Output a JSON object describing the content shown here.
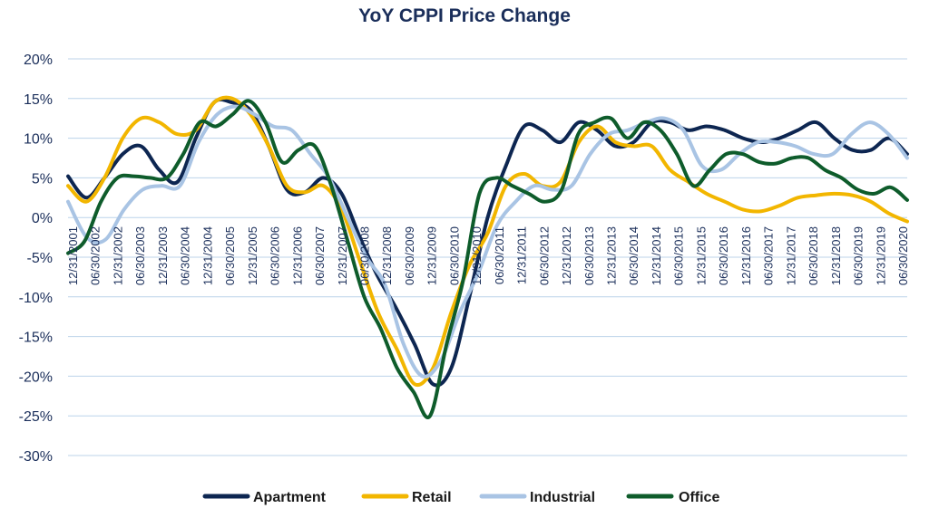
{
  "chart_data": {
    "type": "line",
    "title": "YoY CPPI Price Change",
    "xlabel": "",
    "ylabel": "",
    "ylim": [
      -30,
      20
    ],
    "y_ticks": [
      "20%",
      "15%",
      "10%",
      "5%",
      "0%",
      "-5%",
      "-10%",
      "-15%",
      "-20%",
      "-25%",
      "-30%"
    ],
    "y_tick_values": [
      20,
      15,
      10,
      5,
      0,
      -5,
      -10,
      -15,
      -20,
      -25,
      -30
    ],
    "x_tick_labels": [
      "12/31/2001",
      "06/30/2002",
      "12/31/2002",
      "06/30/2003",
      "12/31/2003",
      "06/30/2004",
      "12/31/2004",
      "06/30/2005",
      "12/31/2005",
      "06/30/2006",
      "12/31/2006",
      "06/30/2007",
      "12/31/2007",
      "06/30/2008",
      "12/31/2008",
      "06/30/2009",
      "12/31/2009",
      "06/30/2010",
      "12/31/2010",
      "06/30/2011",
      "12/31/2011",
      "06/30/2012",
      "12/31/2012",
      "06/30/2013",
      "12/31/2013",
      "06/30/2014",
      "12/31/2014",
      "06/30/2015",
      "12/31/2015",
      "06/30/2016",
      "12/31/2016",
      "06/30/2017",
      "12/31/2017",
      "06/30/2018",
      "12/31/2018",
      "06/30/2019",
      "12/31/2019",
      "06/30/2020"
    ],
    "grid": true,
    "legend_position": "bottom",
    "series": [
      {
        "name": "Apartment",
        "color": "#0d2651",
        "values": [
          5.2,
          2.5,
          5,
          8,
          9,
          6,
          4.5,
          10,
          14.5,
          14.5,
          13.5,
          9,
          3.5,
          3.2,
          5,
          3,
          -2.5,
          -7.5,
          -11.5,
          -16,
          -21,
          -19,
          -10,
          0,
          6.5,
          11.5,
          11,
          9.5,
          12,
          11,
          9,
          9.5,
          12,
          12,
          11,
          11.5,
          11,
          10,
          9.5,
          10,
          11,
          12,
          10,
          8.5,
          8.5,
          10,
          8
        ]
      },
      {
        "name": "Retail",
        "color": "#f2b600",
        "values": [
          4,
          2,
          5,
          10,
          12.5,
          12,
          10.5,
          11,
          14.5,
          15,
          13,
          9,
          4,
          3.2,
          4,
          1,
          -5.5,
          -12,
          -16.5,
          -21,
          -19,
          -12,
          -6,
          -2,
          4,
          5.5,
          4,
          4.5,
          9.5,
          11.5,
          9.5,
          9,
          9,
          6,
          4.5,
          3,
          2,
          1,
          0.8,
          1.5,
          2.5,
          2.8,
          3,
          2.8,
          2,
          0.5,
          -0.5
        ]
      },
      {
        "name": "Industrial",
        "color": "#a9c4e4",
        "values": [
          2,
          -2.5,
          -2.8,
          1,
          3.5,
          4,
          4,
          9.5,
          13,
          14,
          13,
          11.5,
          11,
          8,
          5,
          0,
          -5,
          -8.5,
          -16,
          -20,
          -18,
          -12,
          -7,
          -1,
          2,
          4,
          3.5,
          4,
          8,
          10.5,
          11,
          12,
          12.5,
          11,
          6.5,
          6,
          8,
          9.5,
          9.5,
          9,
          8,
          8,
          10.5,
          12,
          10.5,
          7.5
        ]
      },
      {
        "name": "Office",
        "color": "#0e5c2b",
        "values": [
          -4.5,
          -3,
          2,
          5,
          5.2,
          5,
          5,
          8,
          12,
          11.5,
          13,
          14.7,
          12,
          7,
          8.5,
          9,
          4,
          -3,
          -10,
          -14,
          -19,
          -22,
          -25,
          -16,
          -8,
          3,
          5,
          4,
          3,
          2,
          3.5,
          10.5,
          12,
          12.5,
          10,
          12,
          11,
          8,
          4,
          6,
          8,
          8,
          7,
          6.8,
          7.5,
          7.5,
          6,
          5,
          3.5,
          3,
          3.8,
          2.2
        ]
      }
    ]
  }
}
